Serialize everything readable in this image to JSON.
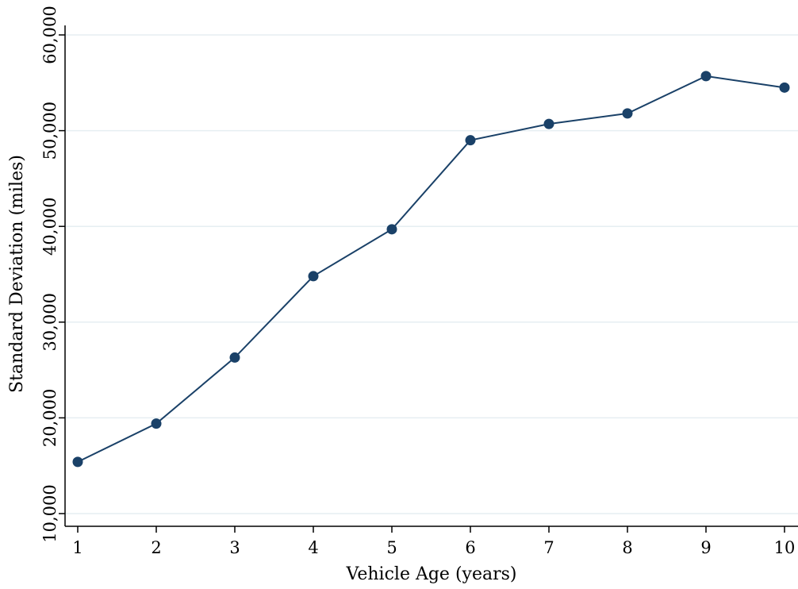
{
  "chart_data": {
    "type": "line",
    "title": "",
    "xlabel": "Vehicle Age (years)",
    "ylabel": "Standard Deviation (miles)",
    "x": [
      1,
      2,
      3,
      4,
      5,
      6,
      7,
      8,
      9,
      10
    ],
    "series": [
      {
        "values": [
          15400,
          19400,
          26300,
          34800,
          39700,
          49000,
          50700,
          51800,
          55700,
          54500
        ]
      }
    ],
    "xticks": [
      "1",
      "2",
      "3",
      "4",
      "5",
      "6",
      "7",
      "8",
      "9",
      "10"
    ],
    "yticks": [
      10000,
      20000,
      30000,
      40000,
      50000,
      60000
    ],
    "ytick_labels": [
      "10,000",
      "20,000",
      "30,000",
      "40,000",
      "50,000",
      "60,000"
    ],
    "xlim": [
      1,
      10
    ],
    "ylim": [
      10000,
      60000
    ],
    "grid": true,
    "line_color": "#1a4168",
    "marker_color": "#1a4168"
  }
}
